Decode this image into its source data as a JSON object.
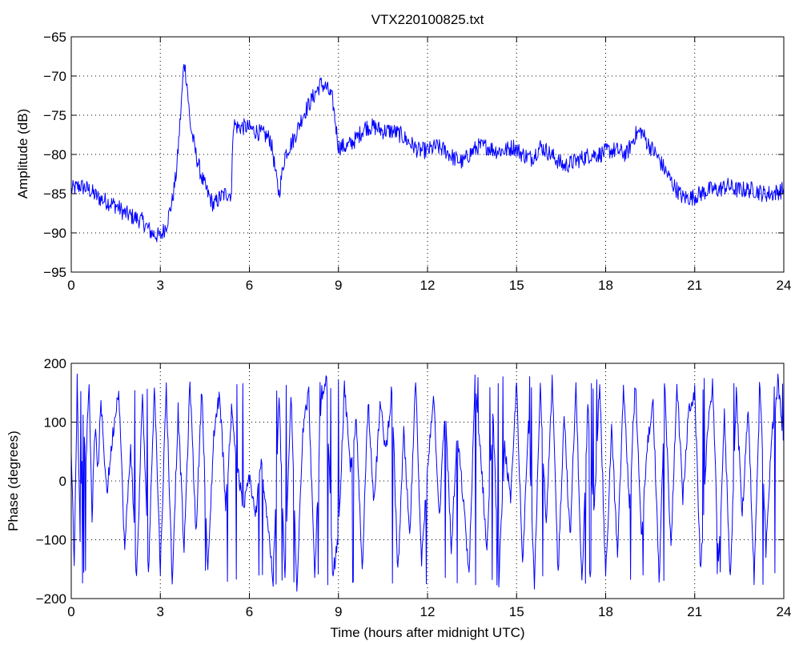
{
  "title": "VTX220100825.txt",
  "xlabel": "Time (hours after midnight UTC)",
  "colors": {
    "trace": "#0000ff",
    "axes": "#000000",
    "grid": "#000000",
    "background": "#ffffff"
  },
  "chart_data": [
    {
      "type": "line",
      "title": "VTX220100825.txt",
      "ylabel": "Amplitude (dB)",
      "xlabel": "",
      "xlim": [
        0,
        24
      ],
      "ylim": [
        -95,
        -65
      ],
      "xticks": [
        0,
        3,
        6,
        9,
        12,
        15,
        18,
        21,
        24
      ],
      "yticks": [
        -95,
        -90,
        -85,
        -80,
        -75,
        -70,
        -65
      ],
      "grid": true,
      "legend": "none",
      "series": [
        {
          "x": [
            0,
            0.3,
            0.6,
            0.9,
            1.2,
            1.5,
            1.8,
            2.1,
            2.4,
            2.7,
            3.0,
            3.2,
            3.4,
            3.55,
            3.7,
            3.8,
            3.9,
            4.0,
            4.2,
            4.4,
            4.6,
            4.8,
            5.0,
            5.2,
            5.4,
            5.45,
            5.6,
            5.9,
            6.2,
            6.5,
            6.7,
            6.8,
            6.9,
            7.0,
            7.2,
            7.5,
            7.8,
            8.1,
            8.4,
            8.6,
            8.8,
            8.9,
            9.0,
            9.3,
            9.6,
            9.9,
            10.2,
            10.5,
            10.8,
            11.1,
            11.4,
            11.7,
            12.0,
            12.3,
            12.6,
            12.9,
            13.2,
            13.4,
            13.7,
            14.0,
            14.3,
            14.6,
            14.9,
            15.2,
            15.5,
            15.8,
            16.0,
            16.3,
            16.6,
            16.9,
            17.2,
            17.5,
            17.8,
            18.1,
            18.4,
            18.7,
            19.0,
            19.2,
            19.4,
            19.7,
            20.0,
            20.3,
            20.6,
            20.9,
            21.2,
            21.5,
            21.8,
            22.1,
            22.4,
            22.7,
            23.0,
            23.3,
            23.6,
            24.0
          ],
          "values": [
            -84.5,
            -84,
            -84.5,
            -85.5,
            -86,
            -86.5,
            -87.5,
            -88,
            -88.5,
            -90,
            -90.5,
            -89,
            -86,
            -82,
            -74,
            -68,
            -71,
            -76,
            -80,
            -83,
            -85,
            -86.5,
            -85.5,
            -85,
            -85,
            -76,
            -76.5,
            -76.5,
            -77,
            -77.5,
            -78,
            -80,
            -83,
            -85,
            -80,
            -78,
            -75,
            -73,
            -71,
            -71.5,
            -73,
            -76,
            -79,
            -79,
            -78,
            -76.5,
            -76.5,
            -77,
            -77,
            -77.5,
            -78.5,
            -79.5,
            -79.5,
            -79,
            -79.5,
            -80.5,
            -81,
            -80,
            -79,
            -79,
            -79.5,
            -79.5,
            -79,
            -80,
            -80.5,
            -79,
            -79.5,
            -80.5,
            -81.5,
            -81,
            -80.5,
            -80,
            -80,
            -79.5,
            -79.5,
            -80,
            -77.5,
            -77,
            -78.5,
            -80,
            -82,
            -84,
            -85.5,
            -85.5,
            -85,
            -84.5,
            -84.5,
            -84,
            -84.5,
            -84.5,
            -84.5,
            -85,
            -85,
            -84.5
          ]
        }
      ]
    },
    {
      "type": "line",
      "title": "",
      "ylabel": "Phase (degrees)",
      "xlabel": "Time (hours after midnight UTC)",
      "xlim": [
        0,
        24
      ],
      "ylim": [
        -200,
        200
      ],
      "xticks": [
        0,
        3,
        6,
        9,
        12,
        15,
        18,
        21,
        24
      ],
      "yticks": [
        -200,
        -100,
        0,
        100,
        200
      ],
      "grid": true,
      "legend": "none",
      "series": [
        {
          "x": [
            0,
            0.1,
            0.2,
            0.3,
            0.4,
            0.5,
            0.6,
            0.7,
            0.8,
            0.9,
            1.0,
            1.2,
            1.4,
            1.6,
            1.8,
            2.0,
            2.2,
            2.4,
            2.6,
            2.8,
            3.0,
            3.2,
            3.4,
            3.6,
            3.8,
            4.0,
            4.2,
            4.4,
            4.6,
            4.8,
            5.0,
            5.2,
            5.4,
            5.6,
            5.8,
            6.0,
            6.2,
            6.4,
            6.6,
            6.8,
            7.0,
            7.2,
            7.4,
            7.6,
            7.8,
            8.0,
            8.2,
            8.4,
            8.6,
            8.8,
            9.0,
            9.2,
            9.4,
            9.6,
            9.8,
            10.0,
            10.2,
            10.4,
            10.6,
            10.8,
            11.0,
            11.2,
            11.4,
            11.6,
            11.8,
            12.0,
            12.2,
            12.4,
            12.6,
            12.8,
            13.0,
            13.2,
            13.4,
            13.6,
            13.8,
            14.0,
            14.2,
            14.4,
            14.6,
            14.8,
            15.0,
            15.2,
            15.4,
            15.6,
            15.8,
            16.0,
            16.2,
            16.4,
            16.6,
            16.8,
            17.0,
            17.2,
            17.4,
            17.6,
            17.8,
            18.0,
            18.2,
            18.4,
            18.6,
            18.8,
            19.0,
            19.2,
            19.4,
            19.6,
            19.8,
            20.0,
            20.2,
            20.4,
            20.6,
            20.8,
            21.0,
            21.2,
            21.4,
            21.6,
            21.8,
            22.0,
            22.2,
            22.4,
            22.6,
            22.8,
            23.0,
            23.2,
            23.4,
            23.6,
            23.8,
            24.0
          ],
          "values": [
            60,
            -150,
            170,
            -100,
            120,
            40,
            170,
            -60,
            90,
            20,
            130,
            -20,
            80,
            160,
            -120,
            60,
            -170,
            150,
            -160,
            170,
            -150,
            160,
            -170,
            120,
            -120,
            170,
            -90,
            160,
            -160,
            80,
            150,
            -40,
            120,
            20,
            -50,
            10,
            -60,
            30,
            -60,
            -170,
            140,
            -170,
            150,
            -180,
            90,
            150,
            -170,
            120,
            170,
            -160,
            -100,
            160,
            20,
            100,
            -150,
            140,
            -40,
            130,
            50,
            160,
            -160,
            80,
            -100,
            170,
            -140,
            20,
            150,
            -60,
            130,
            -120,
            80,
            -30,
            -160,
            170,
            40,
            -120,
            120,
            -170,
            60,
            -40,
            170,
            -150,
            100,
            -170,
            160,
            -80,
            170,
            -160,
            120,
            -100,
            160,
            -180,
            130,
            -60,
            170,
            -170,
            90,
            -130,
            160,
            -40,
            170,
            -100,
            60,
            130,
            -170,
            150,
            -120,
            170,
            -30,
            120,
            150,
            -160,
            60,
            170,
            -150,
            110,
            -170,
            150,
            -60,
            130,
            -170,
            160,
            -120,
            80,
            170,
            60
          ]
        }
      ]
    }
  ]
}
